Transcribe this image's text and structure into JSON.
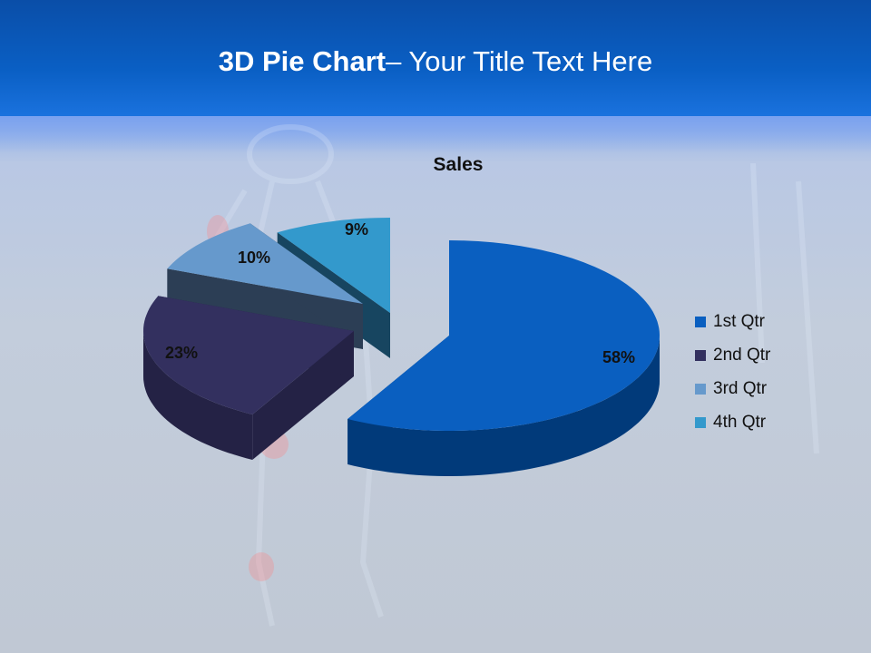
{
  "slide": {
    "title_bold": "3D Pie Chart",
    "title_rest": "– Your Title Text Here"
  },
  "chart_data": {
    "type": "pie",
    "style": "3d-exploded",
    "title": "Sales",
    "categories": [
      "1st Qtr",
      "2nd Qtr",
      "3rd Qtr",
      "4th Qtr"
    ],
    "values": [
      58,
      23,
      10,
      9
    ],
    "data_labels": [
      "58%",
      "23%",
      "10%",
      "9%"
    ],
    "colors": [
      "#0a5fc0",
      "#33305f",
      "#6699cc",
      "#3399cc"
    ],
    "legend_position": "right"
  }
}
